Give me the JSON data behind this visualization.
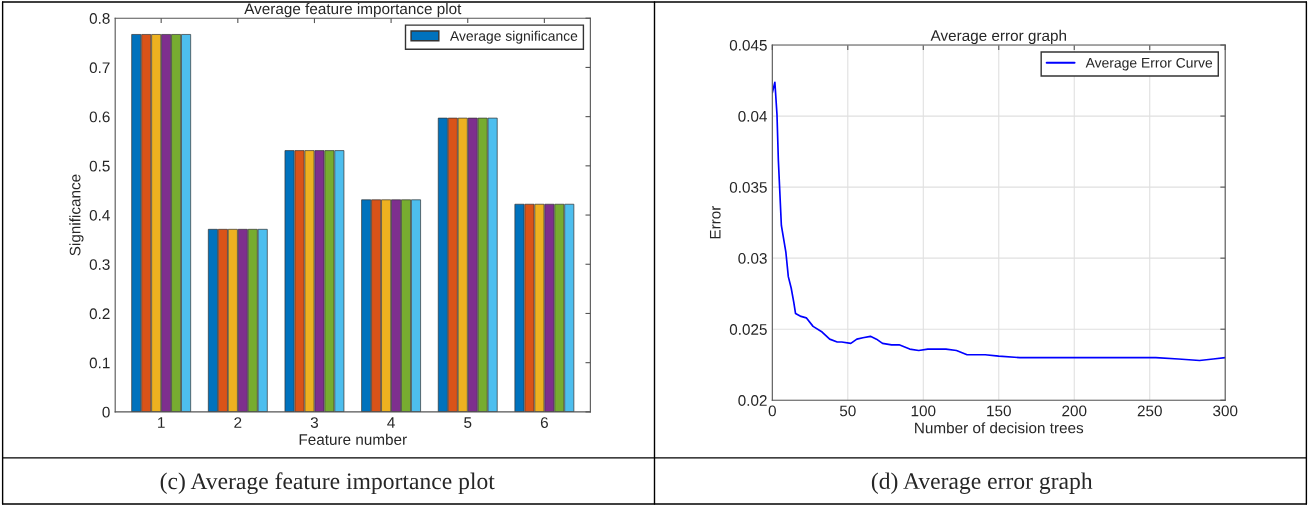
{
  "chart_data": [
    {
      "type": "bar",
      "title": "Average feature importance plot",
      "xlabel": "Feature number",
      "ylabel": "Significance",
      "categories": [
        "1",
        "2",
        "3",
        "4",
        "5",
        "6"
      ],
      "series": [
        {
          "name": "Average significance",
          "color": "#0072bd",
          "values": [
            0.767,
            0.371,
            0.531,
            0.431,
            0.597,
            0.422
          ]
        },
        {
          "color": "#d95319",
          "values": [
            0.767,
            0.371,
            0.531,
            0.431,
            0.597,
            0.422
          ]
        },
        {
          "color": "#edb120",
          "values": [
            0.767,
            0.371,
            0.531,
            0.431,
            0.597,
            0.422
          ]
        },
        {
          "color": "#7e2f8e",
          "values": [
            0.767,
            0.371,
            0.531,
            0.431,
            0.597,
            0.422
          ]
        },
        {
          "color": "#77ac30",
          "values": [
            0.767,
            0.371,
            0.531,
            0.431,
            0.597,
            0.422
          ]
        },
        {
          "color": "#4dbeee",
          "values": [
            0.767,
            0.371,
            0.531,
            0.431,
            0.597,
            0.422
          ]
        }
      ],
      "ylim": [
        0,
        0.8
      ],
      "yticks": [
        0,
        0.1,
        0.2,
        0.3,
        0.4,
        0.5,
        0.6,
        0.7,
        0.8
      ],
      "grid": false,
      "legend": "top right",
      "annotations": [
        "(c) Average feature importance plot"
      ]
    },
    {
      "type": "line",
      "title": "Average error graph",
      "xlabel": "Number of decision trees",
      "ylabel": "Error",
      "series": [
        {
          "name": "Average Error Curve",
          "color": "#0000ff",
          "x": [
            0,
            1.7,
            3.1,
            4,
            6,
            9,
            10.6,
            12.5,
            14.2,
            15.4,
            19,
            22.5,
            27,
            33,
            38,
            43,
            46,
            52,
            56,
            60,
            65,
            69,
            73,
            79,
            84,
            91,
            97,
            103,
            115,
            122,
            129,
            141,
            150,
            164,
            176,
            190,
            202,
            216,
            228,
            243,
            254,
            269,
            283,
            292,
            300
          ],
          "values": [
            0.04164,
            0.04238,
            0.0401,
            0.0369,
            0.0323,
            0.0304,
            0.0287,
            0.0279,
            0.0269,
            0.0261,
            0.0259,
            0.0258,
            0.0252,
            0.0248,
            0.0243,
            0.0241,
            0.0241,
            0.024,
            0.0243,
            0.0244,
            0.0245,
            0.0243,
            0.024,
            0.0239,
            0.0239,
            0.0236,
            0.0235,
            0.0236,
            0.0236,
            0.0235,
            0.0232,
            0.0232,
            0.0231,
            0.023,
            0.023,
            0.023,
            0.023,
            0.023,
            0.023,
            0.023,
            0.023,
            0.0229,
            0.0228,
            0.0229,
            0.023
          ]
        }
      ],
      "xlim": [
        0,
        300
      ],
      "xticks": [
        0,
        50,
        100,
        150,
        200,
        250,
        300
      ],
      "ylim": [
        0.02,
        0.045
      ],
      "yticks": [
        0.02,
        0.025,
        0.03,
        0.035,
        0.04,
        0.045
      ],
      "grid": true,
      "legend": "top right",
      "marker": "none",
      "line_style": "solid",
      "annotations": [
        "(d) Average error graph"
      ]
    }
  ]
}
